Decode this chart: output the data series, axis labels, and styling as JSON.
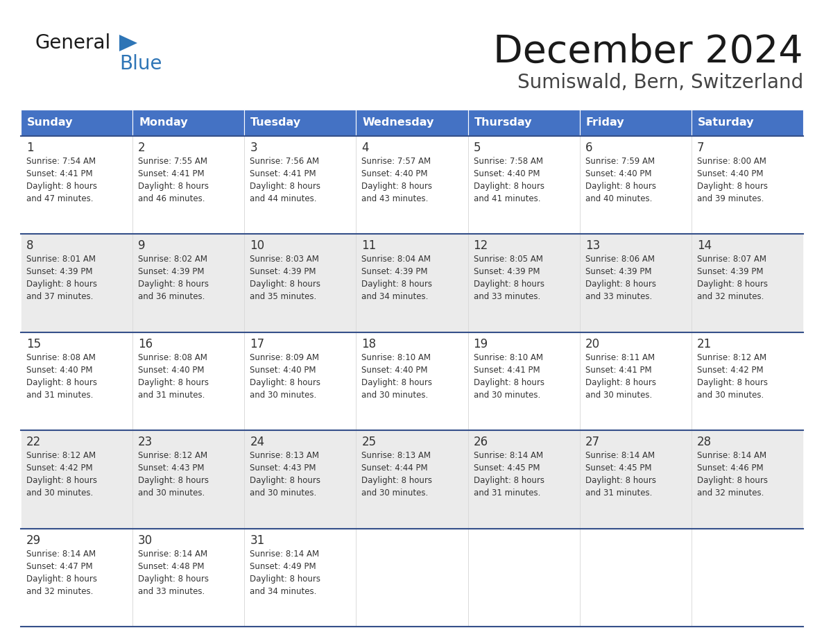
{
  "title": "December 2024",
  "subtitle": "Sumiswald, Bern, Switzerland",
  "header_color": "#4472C4",
  "header_text_color": "#FFFFFF",
  "day_names": [
    "Sunday",
    "Monday",
    "Tuesday",
    "Wednesday",
    "Thursday",
    "Friday",
    "Saturday"
  ],
  "bg_color": "#FFFFFF",
  "cell_bg_light": "#EBEBEB",
  "cell_bg_white": "#FFFFFF",
  "border_color": "#35508A",
  "text_color": "#333333",
  "logo_black": "#1A1A1A",
  "logo_blue": "#2E75B6",
  "logo_triangle": "#2E75B6",
  "days": [
    {
      "day": 1,
      "col": 0,
      "row": 0,
      "sunrise": "7:54 AM",
      "sunset": "4:41 PM",
      "daylight_min": "47"
    },
    {
      "day": 2,
      "col": 1,
      "row": 0,
      "sunrise": "7:55 AM",
      "sunset": "4:41 PM",
      "daylight_min": "46"
    },
    {
      "day": 3,
      "col": 2,
      "row": 0,
      "sunrise": "7:56 AM",
      "sunset": "4:41 PM",
      "daylight_min": "44"
    },
    {
      "day": 4,
      "col": 3,
      "row": 0,
      "sunrise": "7:57 AM",
      "sunset": "4:40 PM",
      "daylight_min": "43"
    },
    {
      "day": 5,
      "col": 4,
      "row": 0,
      "sunrise": "7:58 AM",
      "sunset": "4:40 PM",
      "daylight_min": "41"
    },
    {
      "day": 6,
      "col": 5,
      "row": 0,
      "sunrise": "7:59 AM",
      "sunset": "4:40 PM",
      "daylight_min": "40"
    },
    {
      "day": 7,
      "col": 6,
      "row": 0,
      "sunrise": "8:00 AM",
      "sunset": "4:40 PM",
      "daylight_min": "39"
    },
    {
      "day": 8,
      "col": 0,
      "row": 1,
      "sunrise": "8:01 AM",
      "sunset": "4:39 PM",
      "daylight_min": "37"
    },
    {
      "day": 9,
      "col": 1,
      "row": 1,
      "sunrise": "8:02 AM",
      "sunset": "4:39 PM",
      "daylight_min": "36"
    },
    {
      "day": 10,
      "col": 2,
      "row": 1,
      "sunrise": "8:03 AM",
      "sunset": "4:39 PM",
      "daylight_min": "35"
    },
    {
      "day": 11,
      "col": 3,
      "row": 1,
      "sunrise": "8:04 AM",
      "sunset": "4:39 PM",
      "daylight_min": "34"
    },
    {
      "day": 12,
      "col": 4,
      "row": 1,
      "sunrise": "8:05 AM",
      "sunset": "4:39 PM",
      "daylight_min": "33"
    },
    {
      "day": 13,
      "col": 5,
      "row": 1,
      "sunrise": "8:06 AM",
      "sunset": "4:39 PM",
      "daylight_min": "33"
    },
    {
      "day": 14,
      "col": 6,
      "row": 1,
      "sunrise": "8:07 AM",
      "sunset": "4:39 PM",
      "daylight_min": "32"
    },
    {
      "day": 15,
      "col": 0,
      "row": 2,
      "sunrise": "8:08 AM",
      "sunset": "4:40 PM",
      "daylight_min": "31"
    },
    {
      "day": 16,
      "col": 1,
      "row": 2,
      "sunrise": "8:08 AM",
      "sunset": "4:40 PM",
      "daylight_min": "31"
    },
    {
      "day": 17,
      "col": 2,
      "row": 2,
      "sunrise": "8:09 AM",
      "sunset": "4:40 PM",
      "daylight_min": "30"
    },
    {
      "day": 18,
      "col": 3,
      "row": 2,
      "sunrise": "8:10 AM",
      "sunset": "4:40 PM",
      "daylight_min": "30"
    },
    {
      "day": 19,
      "col": 4,
      "row": 2,
      "sunrise": "8:10 AM",
      "sunset": "4:41 PM",
      "daylight_min": "30"
    },
    {
      "day": 20,
      "col": 5,
      "row": 2,
      "sunrise": "8:11 AM",
      "sunset": "4:41 PM",
      "daylight_min": "30"
    },
    {
      "day": 21,
      "col": 6,
      "row": 2,
      "sunrise": "8:12 AM",
      "sunset": "4:42 PM",
      "daylight_min": "30"
    },
    {
      "day": 22,
      "col": 0,
      "row": 3,
      "sunrise": "8:12 AM",
      "sunset": "4:42 PM",
      "daylight_min": "30"
    },
    {
      "day": 23,
      "col": 1,
      "row": 3,
      "sunrise": "8:12 AM",
      "sunset": "4:43 PM",
      "daylight_min": "30"
    },
    {
      "day": 24,
      "col": 2,
      "row": 3,
      "sunrise": "8:13 AM",
      "sunset": "4:43 PM",
      "daylight_min": "30"
    },
    {
      "day": 25,
      "col": 3,
      "row": 3,
      "sunrise": "8:13 AM",
      "sunset": "4:44 PM",
      "daylight_min": "30"
    },
    {
      "day": 26,
      "col": 4,
      "row": 3,
      "sunrise": "8:14 AM",
      "sunset": "4:45 PM",
      "daylight_min": "31"
    },
    {
      "day": 27,
      "col": 5,
      "row": 3,
      "sunrise": "8:14 AM",
      "sunset": "4:45 PM",
      "daylight_min": "31"
    },
    {
      "day": 28,
      "col": 6,
      "row": 3,
      "sunrise": "8:14 AM",
      "sunset": "4:46 PM",
      "daylight_min": "32"
    },
    {
      "day": 29,
      "col": 0,
      "row": 4,
      "sunrise": "8:14 AM",
      "sunset": "4:47 PM",
      "daylight_min": "32"
    },
    {
      "day": 30,
      "col": 1,
      "row": 4,
      "sunrise": "8:14 AM",
      "sunset": "4:48 PM",
      "daylight_min": "33"
    },
    {
      "day": 31,
      "col": 2,
      "row": 4,
      "sunrise": "8:14 AM",
      "sunset": "4:49 PM",
      "daylight_min": "34"
    }
  ]
}
